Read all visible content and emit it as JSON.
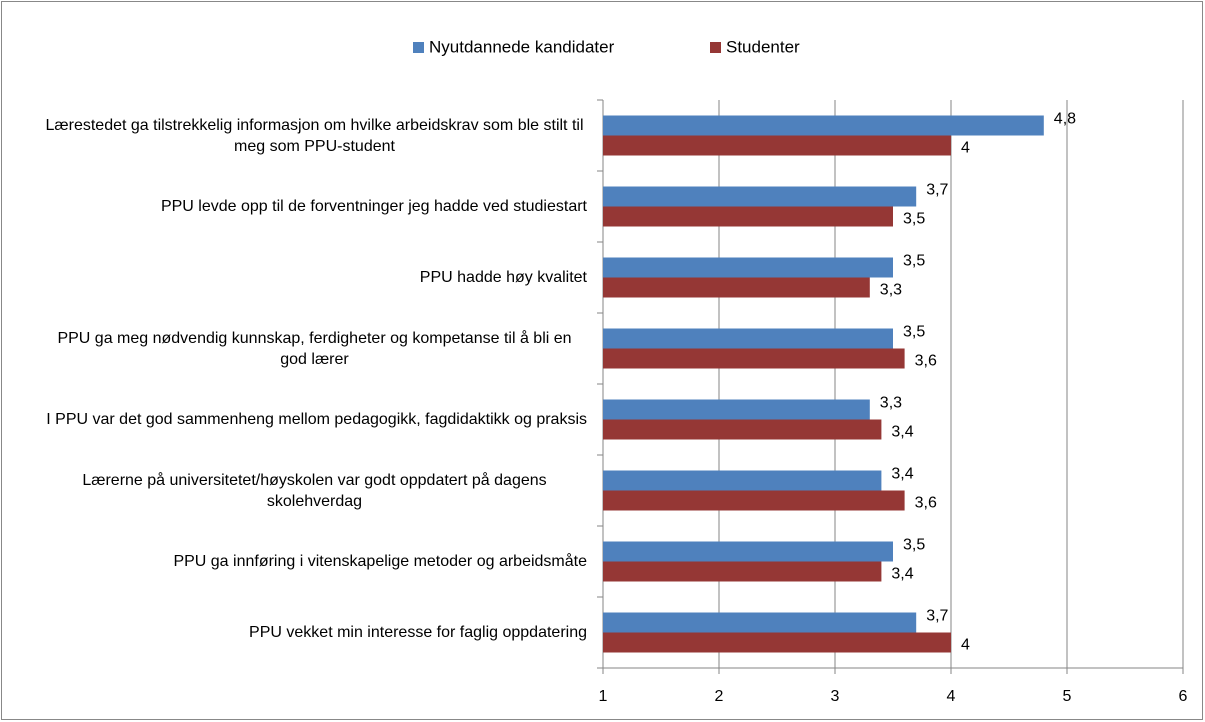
{
  "chart_data": {
    "type": "bar",
    "orientation": "horizontal",
    "categories": [
      "Lærestedet ga tilstrekkelig informasjon om hvilke arbeidskrav som ble stilt til meg som PPU-student",
      "PPU levde opp til de forventninger jeg hadde ved studiestart",
      "PPU hadde høy kvalitet",
      "PPU ga meg nødvendig kunnskap, ferdigheter og kompetanse til å bli en god lærer",
      "I PPU var det god sammenheng mellom pedagogikk, fagdidaktikk og praksis",
      "Lærerne på universitetet/høyskolen var godt oppdatert på dagens skolehverdag",
      "PPU ga innføring i vitenskapelige metoder og arbeidsmåte",
      "PPU vekket min interesse for faglig oppdatering"
    ],
    "series": [
      {
        "name": "Nyutdannede kandidater",
        "color": "#4f81bd",
        "values": [
          4.8,
          3.7,
          3.5,
          3.5,
          3.3,
          3.4,
          3.5,
          3.7
        ],
        "value_labels": [
          "4,8",
          "3,7",
          "3,5",
          "3,5",
          "3,3",
          "3,4",
          "3,5",
          "3,7"
        ]
      },
      {
        "name": "Studenter",
        "color": "#953735",
        "values": [
          4,
          3.5,
          3.3,
          3.6,
          3.4,
          3.6,
          3.4,
          4
        ],
        "value_labels": [
          "4",
          "3,5",
          "3,3",
          "3,6",
          "3,4",
          "3,6",
          "3,4",
          "4"
        ]
      }
    ],
    "xlim": [
      1,
      6
    ],
    "xticks": [
      1,
      2,
      3,
      4,
      5,
      6
    ],
    "grid": true,
    "legend": "top"
  }
}
